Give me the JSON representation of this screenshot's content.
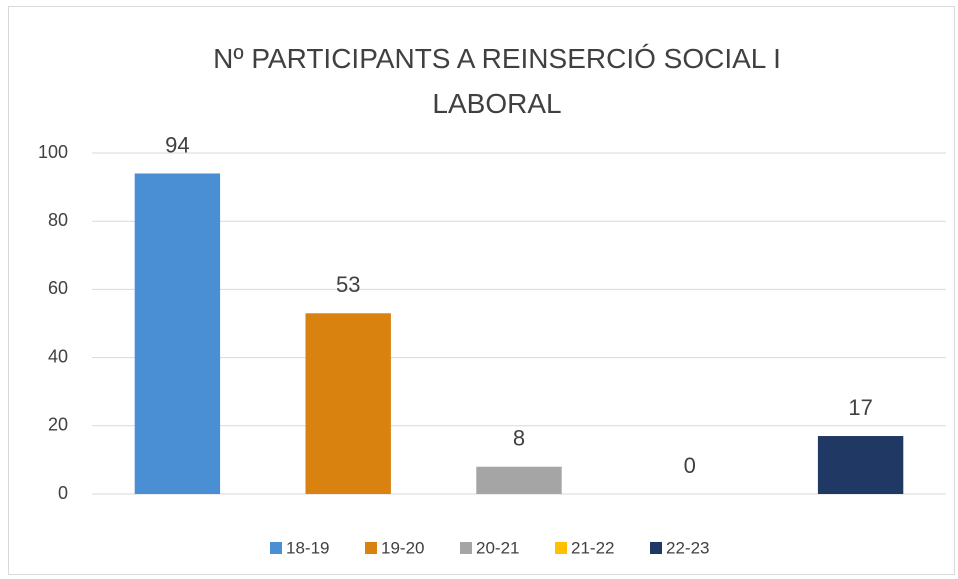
{
  "chart_data": {
    "type": "bar",
    "title": "Nº PARTICIPANTS A REINSERCIÓ SOCIAL I LABORAL",
    "categories": [
      "18-19",
      "19-20",
      "20-21",
      "21-22",
      "22-23"
    ],
    "values": [
      94,
      53,
      8,
      0,
      17
    ],
    "colors": [
      "#4a8fd4",
      "#d9820f",
      "#a5a5a5",
      "#ffc000",
      "#203864"
    ],
    "ylim": [
      0,
      100
    ],
    "yticks": [
      0,
      20,
      40,
      60,
      80,
      100
    ],
    "grid": true,
    "legend": "bottom"
  }
}
